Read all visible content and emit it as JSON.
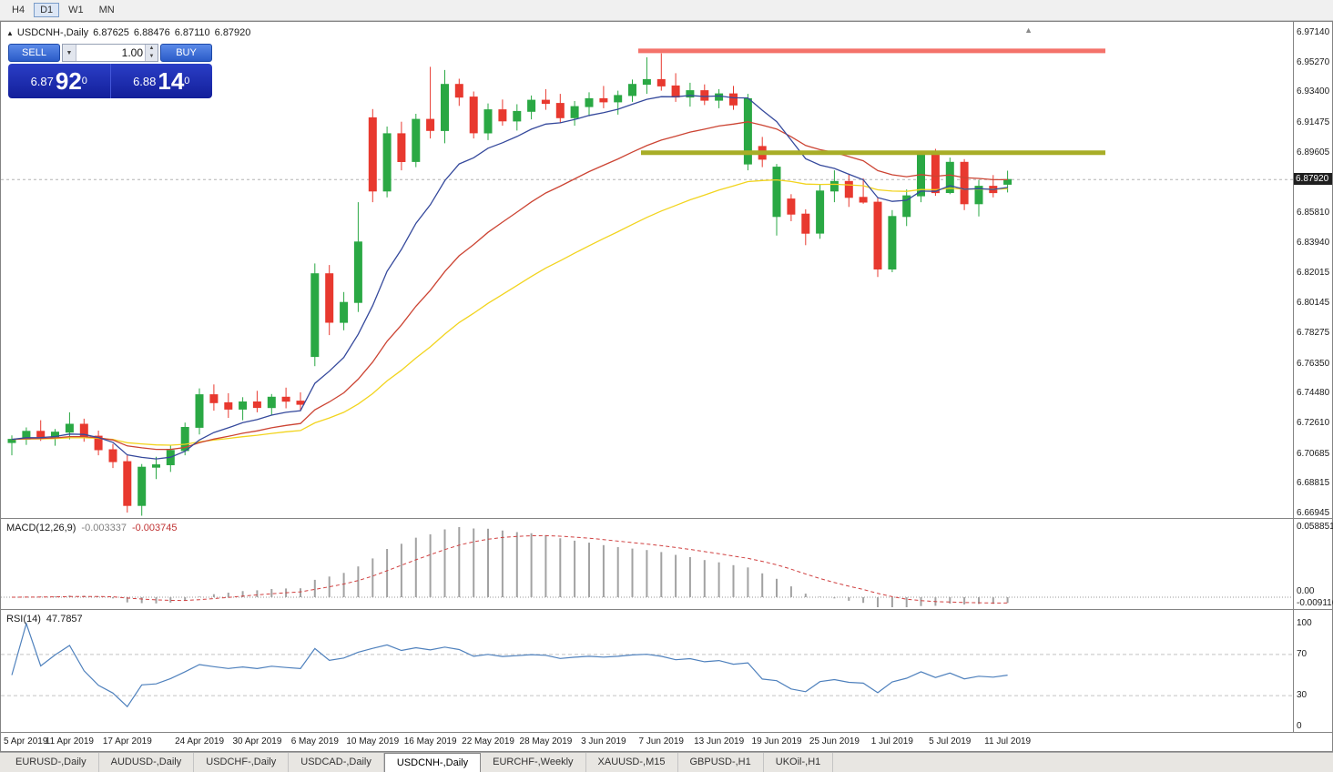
{
  "toolbar": {
    "timeframes": [
      {
        "label": "H4",
        "active": false
      },
      {
        "label": "D1",
        "active": true
      },
      {
        "label": "W1",
        "active": false
      },
      {
        "label": "MN",
        "active": false
      }
    ]
  },
  "icons": {
    "collapse_arrow": "▲",
    "corner_arrow": "▲",
    "dropdown_arrow": "▼",
    "spin_up": "▲",
    "spin_down": "▼"
  },
  "chart": {
    "symbol_line": {
      "title": "USDCNH-,Daily",
      "open": "6.87625",
      "high": "6.88476",
      "low": "6.87110",
      "close": "6.87920"
    },
    "trade_panel": {
      "sell_label": "SELL",
      "buy_label": "BUY",
      "volume": "1.00",
      "sell_price": {
        "prefix": "6.87",
        "pips": "92",
        "point": "0"
      },
      "buy_price": {
        "prefix": "6.88",
        "pips": "14",
        "point": "0"
      }
    },
    "current_price": "6.87920",
    "price_scale": [
      [
        "6.97140",
        6.9714
      ],
      [
        "6.95270",
        6.9527
      ],
      [
        "6.93400",
        6.934
      ],
      [
        "6.91475",
        6.91475
      ],
      [
        "6.89605",
        6.89605
      ],
      [
        "6.85810",
        6.8581
      ],
      [
        "6.83940",
        6.8394
      ],
      [
        "6.82015",
        6.82015
      ],
      [
        "6.80145",
        6.80145
      ],
      [
        "6.78275",
        6.78275
      ],
      [
        "6.76350",
        6.7635
      ],
      [
        "6.74480",
        6.7448
      ],
      [
        "6.72610",
        6.7261
      ],
      [
        "6.70685",
        6.70685
      ],
      [
        "6.68815",
        6.68815
      ],
      [
        "6.66945",
        6.66945
      ]
    ]
  },
  "macd_panel": {
    "label": "MACD(12,26,9)",
    "main_value": "-0.003337",
    "signal_value": "-0.003745",
    "scale_max": "0.058851",
    "scale_zero": "0.00",
    "scale_min": "-0.009116"
  },
  "rsi_panel": {
    "label": "RSI(14)",
    "value": "47.7857",
    "scale_max": "100",
    "level_high": "70",
    "level_low": "30",
    "scale_min": "0"
  },
  "time_axis": [
    [
      "5 Apr 2019",
      0
    ],
    [
      "11 Apr 2019",
      4
    ],
    [
      "17 Apr 2019",
      8
    ],
    [
      "24 Apr 2019",
      13
    ],
    [
      "30 Apr 2019",
      17
    ],
    [
      "6 May 2019",
      21
    ],
    [
      "10 May 2019",
      25
    ],
    [
      "16 May 2019",
      29
    ],
    [
      "22 May 2019",
      33
    ],
    [
      "28 May 2019",
      37
    ],
    [
      "3 Jun 2019",
      41
    ],
    [
      "7 Jun 2019",
      45
    ],
    [
      "13 Jun 2019",
      49
    ],
    [
      "19 Jun 2019",
      53
    ],
    [
      "25 Jun 2019",
      57
    ],
    [
      "1 Jul 2019",
      61
    ],
    [
      "5 Jul 2019",
      65
    ],
    [
      "11 Jul 2019",
      69
    ]
  ],
  "tabs": [
    {
      "label": "EURUSD-,Daily",
      "active": false
    },
    {
      "label": "AUDUSD-,Daily",
      "active": false
    },
    {
      "label": "USDCHF-,Daily",
      "active": false
    },
    {
      "label": "USDCAD-,Daily",
      "active": false
    },
    {
      "label": "USDCNH-,Daily",
      "active": true
    },
    {
      "label": "EURCHF-,Weekly",
      "active": false
    },
    {
      "label": "XAUUSD-,M15",
      "active": false
    },
    {
      "label": "GBPUSD-,H1",
      "active": false
    },
    {
      "label": "UKOil-,H1",
      "active": false
    }
  ],
  "chart_data": {
    "type": "candlestick",
    "title": "USDCNH-,Daily",
    "ylim": [
      6.6666,
      6.9783
    ],
    "current_price_value": 6.8792,
    "colors": {
      "up": "#2aa844",
      "down": "#e8392f"
    },
    "columns": [
      "date",
      "open",
      "high",
      "low",
      "close"
    ],
    "candles": [
      [
        "5 Apr 2019",
        6.714,
        6.7185,
        6.706,
        6.716
      ],
      [
        "8 Apr 2019",
        6.716,
        6.7235,
        6.7125,
        6.721
      ],
      [
        "9 Apr 2019",
        6.721,
        6.728,
        6.715,
        6.7175
      ],
      [
        "10 Apr 2019",
        6.7175,
        6.7225,
        6.712,
        6.7205
      ],
      [
        "11 Apr 2019",
        6.7205,
        6.733,
        6.716,
        6.7255
      ],
      [
        "12 Apr 2019",
        6.7255,
        6.729,
        6.7145,
        6.718
      ],
      [
        "15 Apr 2019",
        6.718,
        6.7215,
        6.706,
        6.7095
      ],
      [
        "16 Apr 2019",
        6.7095,
        6.713,
        6.698,
        6.702
      ],
      [
        "17 Apr 2019",
        6.702,
        6.706,
        6.67,
        6.6745
      ],
      [
        "18 Apr 2019",
        6.6745,
        6.7005,
        6.668,
        6.6985
      ],
      [
        "19 Apr 2019",
        6.6985,
        6.705,
        6.691,
        6.7
      ],
      [
        "22 Apr 2019",
        6.7,
        6.7125,
        6.6955,
        6.709
      ],
      [
        "23 Apr 2019",
        6.709,
        6.7265,
        6.706,
        6.7235
      ],
      [
        "24 Apr 2019",
        6.7235,
        6.748,
        6.719,
        6.744
      ],
      [
        "25 Apr 2019",
        6.744,
        6.7505,
        6.734,
        6.739
      ],
      [
        "26 Apr 2019",
        6.739,
        6.745,
        6.7295,
        6.735
      ],
      [
        "29 Apr 2019",
        6.735,
        6.7425,
        6.728,
        6.7395
      ],
      [
        "30 Apr 2019",
        6.7395,
        6.7465,
        6.733,
        6.736
      ],
      [
        "1 May 2019",
        6.736,
        6.7445,
        6.731,
        6.7425
      ],
      [
        "2 May 2019",
        6.7425,
        6.7485,
        6.7355,
        6.74
      ],
      [
        "3 May 2019",
        6.74,
        6.7455,
        6.734,
        6.738
      ],
      [
        "6 May 2019",
        6.768,
        6.8265,
        6.762,
        6.82
      ],
      [
        "7 May 2019",
        6.82,
        6.8255,
        6.7815,
        6.7895
      ],
      [
        "8 May 2019",
        6.7895,
        6.8085,
        6.7845,
        6.802
      ],
      [
        "9 May 2019",
        6.802,
        6.865,
        6.796,
        6.84
      ],
      [
        "10 May 2019",
        6.918,
        6.9235,
        6.865,
        6.872
      ],
      [
        "13 May 2019",
        6.872,
        6.9125,
        6.868,
        6.908
      ],
      [
        "14 May 2019",
        6.908,
        6.9155,
        6.885,
        6.8905
      ],
      [
        "15 May 2019",
        6.8905,
        6.9205,
        6.887,
        6.917
      ],
      [
        "16 May 2019",
        6.917,
        6.95,
        6.905,
        6.91
      ],
      [
        "17 May 2019",
        6.91,
        6.948,
        6.902,
        6.939
      ],
      [
        "20 May 2019",
        6.939,
        6.9425,
        6.9255,
        6.931
      ],
      [
        "21 May 2019",
        6.931,
        6.9345,
        6.905,
        6.9085
      ],
      [
        "22 May 2019",
        6.9085,
        6.927,
        6.904,
        6.923
      ],
      [
        "23 May 2019",
        6.923,
        6.9295,
        6.913,
        6.916
      ],
      [
        "24 May 2019",
        6.916,
        6.9265,
        6.91,
        6.922
      ],
      [
        "27 May 2019",
        6.922,
        6.932,
        6.917,
        6.929
      ],
      [
        "28 May 2019",
        6.929,
        6.936,
        6.923,
        6.927
      ],
      [
        "29 May 2019",
        6.927,
        6.933,
        6.915,
        6.918
      ],
      [
        "30 May 2019",
        6.918,
        6.9285,
        6.913,
        6.925
      ],
      [
        "31 May 2019",
        6.925,
        6.934,
        6.919,
        6.93
      ],
      [
        "3 Jun 2019",
        6.93,
        6.938,
        6.924,
        6.928
      ],
      [
        "4 Jun 2019",
        6.928,
        6.935,
        6.92,
        6.932
      ],
      [
        "5 Jun 2019",
        6.932,
        6.942,
        6.928,
        6.939
      ],
      [
        "6 Jun 2019",
        6.939,
        6.956,
        6.933,
        6.942
      ],
      [
        "7 Jun 2019",
        6.942,
        6.9585,
        6.935,
        6.938
      ],
      [
        "10 Jun 2019",
        6.938,
        6.946,
        6.928,
        6.931
      ],
      [
        "11 Jun 2019",
        6.931,
        6.94,
        6.925,
        6.935
      ],
      [
        "12 Jun 2019",
        6.935,
        6.939,
        6.926,
        6.929
      ],
      [
        "13 Jun 2019",
        6.929,
        6.936,
        6.924,
        6.933
      ],
      [
        "14 Jun 2019",
        6.933,
        6.938,
        6.923,
        6.926
      ],
      [
        "17 Jun 2019",
        6.889,
        6.933,
        6.885,
        6.93
      ],
      [
        "18 Jun 2019",
        6.9,
        6.906,
        6.887,
        6.892
      ],
      [
        "19 Jun 2019",
        6.856,
        6.889,
        6.844,
        6.887
      ],
      [
        "20 Jun 2019",
        6.867,
        6.87,
        6.853,
        6.8575
      ],
      [
        "21 Jun 2019",
        6.8575,
        6.8605,
        6.838,
        6.8455
      ],
      [
        "24 Jun 2019",
        6.8455,
        6.876,
        6.842,
        6.872
      ],
      [
        "25 Jun 2019",
        6.872,
        6.885,
        6.865,
        6.878
      ],
      [
        "26 Jun 2019",
        6.878,
        6.8825,
        6.862,
        6.868
      ],
      [
        "27 Jun 2019",
        6.868,
        6.88,
        6.864,
        6.865
      ],
      [
        "28 Jun 2019",
        6.865,
        6.868,
        6.818,
        6.823
      ],
      [
        "1 Jul 2019",
        6.823,
        6.86,
        6.821,
        6.856
      ],
      [
        "2 Jul 2019",
        6.856,
        6.873,
        6.85,
        6.869
      ],
      [
        "3 Jul 2019",
        6.869,
        6.897,
        6.865,
        6.895
      ],
      [
        "4 Jul 2019",
        6.895,
        6.8985,
        6.869,
        6.871
      ],
      [
        "5 Jul 2019",
        6.871,
        6.893,
        6.87,
        6.89
      ],
      [
        "8 Jul 2019",
        6.89,
        6.892,
        6.86,
        6.864
      ],
      [
        "9 Jul 2019",
        6.864,
        6.879,
        6.856,
        6.875
      ],
      [
        "10 Jul 2019",
        6.875,
        6.882,
        6.868,
        6.871
      ],
      [
        "11 Jul 2019",
        6.87625,
        6.88476,
        6.8711,
        6.8792
      ]
    ],
    "moving_averages": [
      {
        "name": "fast",
        "period": 9,
        "color": "#35499c"
      },
      {
        "name": "medium",
        "period": 21,
        "color": "#cc4433"
      },
      {
        "name": "slow",
        "period": 40,
        "color": "#f2d41e"
      }
    ],
    "hlines": [
      {
        "name": "resistance",
        "price": 6.96,
        "start_index": 43.4,
        "end_index": 75.8,
        "color": "#f4726a",
        "width": 5
      },
      {
        "name": "support",
        "price": 6.896,
        "start_index": 43.6,
        "end_index": 75.8,
        "color": "#a8ad27",
        "width": 5
      }
    ],
    "macd": {
      "fast": 12,
      "slow": 26,
      "signal": 9,
      "histogram_color": "#a2a2a2",
      "signal_color": "#d04040",
      "current_main": -0.003337,
      "current_signal": -0.003745,
      "scale_max": 0.058851,
      "scale_min": -0.009116
    },
    "rsi": {
      "period": 14,
      "color": "#4f81bd",
      "levels": [
        70,
        30
      ],
      "current": 47.7857,
      "range": [
        0,
        100
      ]
    }
  }
}
